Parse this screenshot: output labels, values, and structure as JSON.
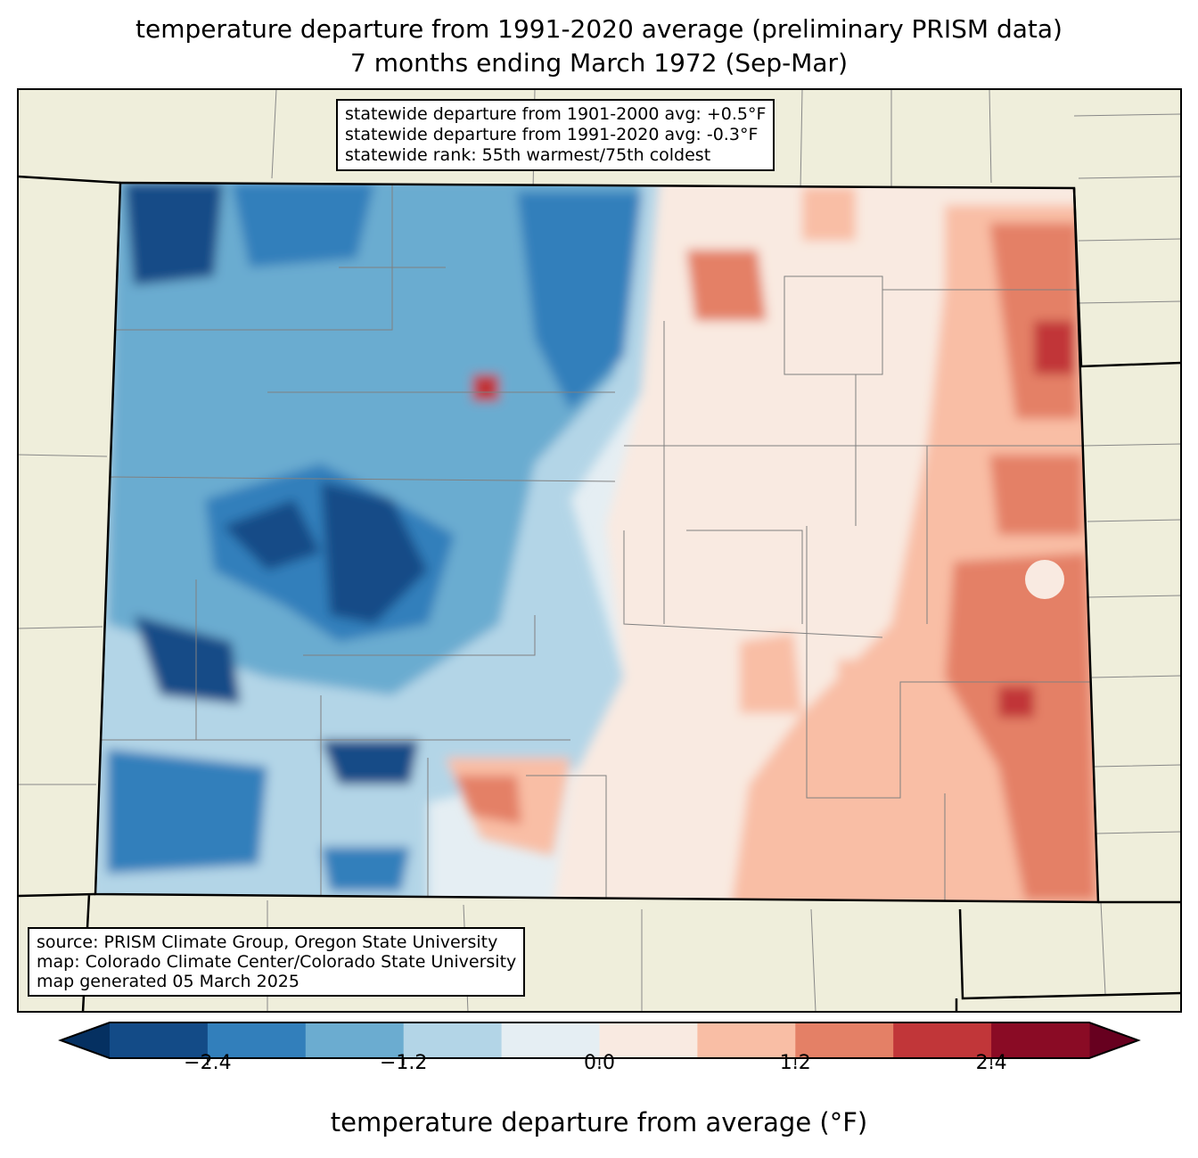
{
  "title": {
    "line1": "temperature departure from 1991-2020 average (preliminary PRISM data)",
    "line2": "7 months ending March 1972 (Sep-Mar)"
  },
  "stats": {
    "line1": "statewide departure from 1901-2000 avg: +0.5°F",
    "line2": "statewide departure from 1991-2020 avg: -0.3°F",
    "line3": "statewide rank: 55th warmest/75th coldest"
  },
  "source": {
    "line1": "source: PRISM Climate Group, Oregon State University",
    "line2": "map: Colorado Climate Center/Colorado State University",
    "line3": "map generated 05 March 2025"
  },
  "colorbar": {
    "label": "temperature departure from average (°F)",
    "levels": [
      -3.0,
      -2.4,
      -1.8,
      -1.2,
      -0.6,
      0.0,
      0.6,
      1.2,
      1.8,
      2.4,
      3.0
    ],
    "colors": [
      "#134b87",
      "#327fbb",
      "#6bacd0",
      "#b3d5e7",
      "#e5eef3",
      "#f9eae1",
      "#f9bea5",
      "#e48066",
      "#c13639",
      "#8a0b25"
    ],
    "under_color": "#053061",
    "over_color": "#67001f",
    "ticks": [
      "−2.4",
      "−1.2",
      "0.0",
      "1.2",
      "2.4"
    ]
  },
  "colors": {
    "land": "#efeedb"
  }
}
